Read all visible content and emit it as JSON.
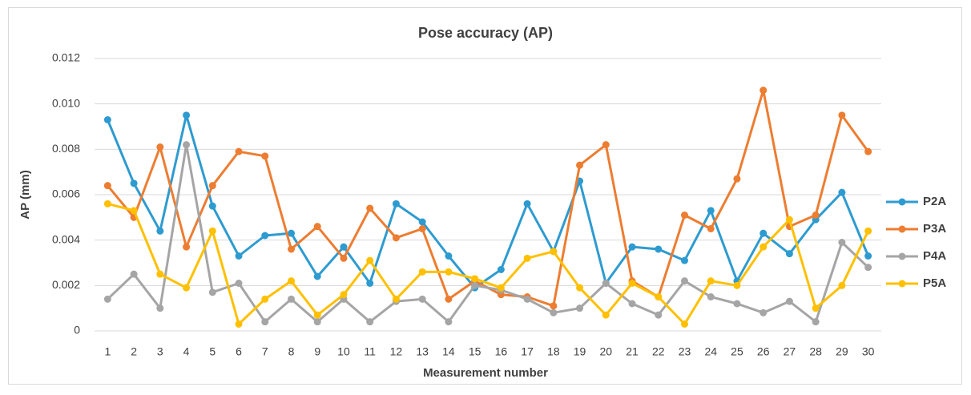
{
  "chart_data": {
    "type": "line",
    "title": "Pose accuracy (AP)",
    "x_label": "Measurement number",
    "y_label": "AP (mm)",
    "categories": [
      1,
      2,
      3,
      4,
      5,
      6,
      7,
      8,
      9,
      10,
      11,
      12,
      13,
      14,
      15,
      16,
      17,
      18,
      19,
      20,
      21,
      22,
      23,
      24,
      25,
      26,
      27,
      28,
      29,
      30
    ],
    "ylim": [
      0,
      0.012
    ],
    "yticks": [
      0,
      0.002,
      0.004,
      0.006,
      0.008,
      {
        "value": 0.01,
        "label": "0.010"
      },
      0.012
    ],
    "grid": true,
    "legend": "right",
    "series": [
      {
        "name": "P2A",
        "color": "#2e9bd0",
        "values": [
          0.0093,
          0.0065,
          0.0044,
          0.0095,
          0.0055,
          0.0033,
          0.0042,
          0.0043,
          0.0024,
          0.0037,
          0.0021,
          0.0056,
          0.0048,
          0.0033,
          0.0019,
          0.0027,
          0.0056,
          0.0035,
          0.0066,
          0.0021,
          0.0037,
          0.0036,
          0.0031,
          0.0053,
          0.0022,
          0.0043,
          0.0034,
          0.0049,
          0.0061,
          0.0033
        ]
      },
      {
        "name": "P3A",
        "color": "#ed7d31",
        "values": [
          0.0064,
          0.005,
          0.0081,
          0.0037,
          0.0064,
          0.0079,
          0.0077,
          0.0036,
          0.0046,
          0.0032,
          0.0054,
          0.0041,
          0.0045,
          0.0014,
          0.0022,
          0.0016,
          0.0015,
          0.0011,
          0.0073,
          0.0082,
          0.0022,
          0.0015,
          0.0051,
          0.0045,
          0.0067,
          0.0106,
          0.0046,
          0.0051,
          0.0095,
          0.0079
        ]
      },
      {
        "name": "P4A",
        "color": "#a5a5a5",
        "values": [
          0.0014,
          0.0025,
          0.001,
          0.0082,
          0.0017,
          0.0021,
          0.0004,
          0.0014,
          0.0004,
          0.0014,
          0.0004,
          0.0013,
          0.0014,
          0.0004,
          0.002,
          0.0018,
          0.0014,
          0.0008,
          0.001,
          0.0021,
          0.0012,
          0.0007,
          0.0022,
          0.0015,
          0.0012,
          0.0008,
          0.0013,
          0.0004,
          0.0039,
          0.0028
        ]
      },
      {
        "name": "P5A",
        "color": "#ffc000",
        "values": [
          0.0056,
          0.0053,
          0.0025,
          0.0019,
          0.0044,
          0.0003,
          0.0014,
          0.0022,
          0.0007,
          0.0016,
          0.0031,
          0.0014,
          0.0026,
          0.0026,
          0.0023,
          0.0019,
          0.0032,
          0.0035,
          0.0019,
          0.0007,
          0.0021,
          0.0015,
          0.0003,
          0.0022,
          0.002,
          0.0037,
          0.0049,
          0.001,
          0.002,
          0.0044
        ]
      }
    ]
  }
}
